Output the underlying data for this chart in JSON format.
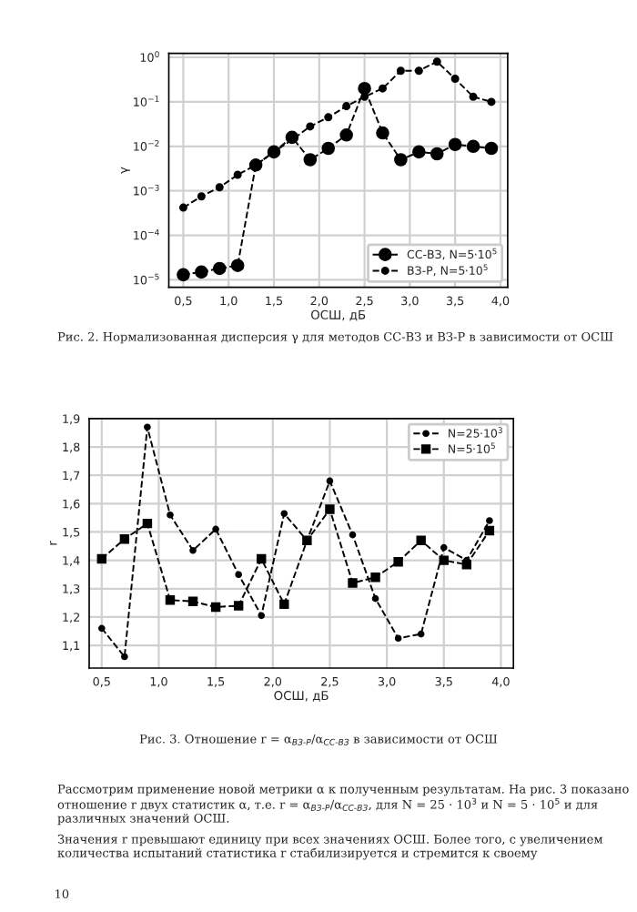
{
  "chart_data": [
    {
      "type": "line",
      "xlabel": "ОСШ, дБ",
      "ylabel": "γ",
      "log": "y",
      "x": [
        0.5,
        0.7,
        0.9,
        1.1,
        1.3,
        1.5,
        1.7,
        1.9,
        2.1,
        2.3,
        2.5,
        2.7,
        2.9,
        3.1,
        3.3,
        3.5,
        3.7,
        3.9
      ],
      "series": [
        {
          "name": "СС-ВЗ, N=5·10$^{5}$",
          "color": "#000000",
          "marker": "circle",
          "values": [
            1.3e-05,
            1.5e-05,
            1.8e-05,
            2.1e-05,
            0.0038,
            0.0075,
            0.016,
            0.005,
            0.009,
            0.018,
            0.2,
            0.02,
            0.005,
            0.0075,
            0.0068,
            0.011,
            0.01,
            0.009
          ]
        },
        {
          "name": "ВЗ-Р, N=5·10$^{5}$",
          "color": "#000000",
          "marker": "circle",
          "values": [
            0.00042,
            0.00075,
            0.0012,
            0.0023,
            0.0038,
            0.0075,
            0.014,
            0.028,
            0.045,
            0.08,
            0.13,
            0.2,
            0.5,
            0.5,
            0.8,
            0.33,
            0.13,
            0.1
          ]
        }
      ],
      "xlim": [
        0.34,
        4.08
      ],
      "ylim": [
        6.8e-06,
        1.23
      ],
      "xticks": [
        {
          "value": 0.5,
          "label": "0,5"
        },
        {
          "value": 1.0,
          "label": "1,0"
        },
        {
          "value": 1.5,
          "label": "1,5"
        },
        {
          "value": 2.0,
          "label": "2,0"
        },
        {
          "value": 2.5,
          "label": "2,5"
        },
        {
          "value": 3.0,
          "label": "3,0"
        },
        {
          "value": 3.5,
          "label": "3,5"
        },
        {
          "value": 4.0,
          "label": "4,0"
        }
      ],
      "yticks": [
        {
          "value": 1e-05,
          "label": "10$^{−5}$"
        },
        {
          "value": 0.0001,
          "label": "10$^{−4}$"
        },
        {
          "value": 0.001,
          "label": "10$^{−3}$"
        },
        {
          "value": 0.01,
          "label": "10$^{−2}$"
        },
        {
          "value": 0.1,
          "label": "10$^{−1}$"
        },
        {
          "value": 1,
          "label": "10$^{0}$"
        }
      ],
      "grid": true,
      "legend": "bottom right",
      "line_style": "dashed",
      "annotations": [
        "Рис. 2. Нормализованная дисперсия γ для методов СС-ВЗ и ВЗ-Р в зависимости от ОСШ"
      ]
    },
    {
      "type": "line",
      "xlabel": "ОСШ, дБ",
      "ylabel": "r",
      "x": [
        0.5,
        0.7,
        0.9,
        1.1,
        1.3,
        1.5,
        1.7,
        1.9,
        2.1,
        2.3,
        2.5,
        2.7,
        2.9,
        3.1,
        3.3,
        3.5,
        3.7,
        3.9
      ],
      "series": [
        {
          "name": "N=25·10$^{3}$",
          "color": "#000000",
          "marker": "circle",
          "values": [
            1.16,
            1.06,
            1.87,
            1.56,
            1.435,
            1.51,
            1.35,
            1.205,
            1.565,
            1.47,
            1.68,
            1.49,
            1.265,
            1.125,
            1.14,
            1.445,
            1.4,
            1.54
          ]
        },
        {
          "name": "N=5·10$^{5}$",
          "color": "#000000",
          "marker": "square",
          "values": [
            1.405,
            1.475,
            1.53,
            1.26,
            1.255,
            1.235,
            1.24,
            1.405,
            1.245,
            1.47,
            1.58,
            1.32,
            1.34,
            1.395,
            1.47,
            1.4,
            1.385,
            1.505
          ]
        }
      ],
      "xlim": [
        0.39,
        4.11
      ],
      "ylim": [
        1.02,
        1.9
      ],
      "xticks": [
        {
          "value": 0.5,
          "label": "0,5"
        },
        {
          "value": 1.0,
          "label": "1,0"
        },
        {
          "value": 1.5,
          "label": "1,5"
        },
        {
          "value": 2.0,
          "label": "2,0"
        },
        {
          "value": 2.5,
          "label": "2,5"
        },
        {
          "value": 3.0,
          "label": "3,0"
        },
        {
          "value": 3.5,
          "label": "3,5"
        },
        {
          "value": 4.0,
          "label": "4,0"
        }
      ],
      "yticks": [
        {
          "value": 1.1,
          "label": "1,1"
        },
        {
          "value": 1.2,
          "label": "1,2"
        },
        {
          "value": 1.3,
          "label": "1,3"
        },
        {
          "value": 1.4,
          "label": "1,4"
        },
        {
          "value": 1.5,
          "label": "1,5"
        },
        {
          "value": 1.6,
          "label": "1,6"
        },
        {
          "value": 1.7,
          "label": "1,7"
        },
        {
          "value": 1.8,
          "label": "1,8"
        },
        {
          "value": 1.9,
          "label": "1,9"
        }
      ],
      "grid": true,
      "legend": "top right",
      "line_style": "dashed",
      "annotations": [
        "Рис. 3. Отношение r = α$_{ВЗ-Р}$/α$_{СС-ВЗ}$ в зависимости от ОСШ",
        "Рассмотрим применение новой метрики α к полученным результатам. На рис. 3 показано отношение r двух статистик α, т.е. r = α$_{ВЗ-Р}$/α$_{СС-ВЗ}$, для N = 25 · 10$^{3}$ и N = 5 · 10$^{5}$ и для различных значений ОСШ.",
        "Значения r превышают единицу при всех значениях ОСШ. Более того, с увеличением количества испытаний статистика r стабилизируется и стремится к своему",
        "10"
      ]
    }
  ]
}
